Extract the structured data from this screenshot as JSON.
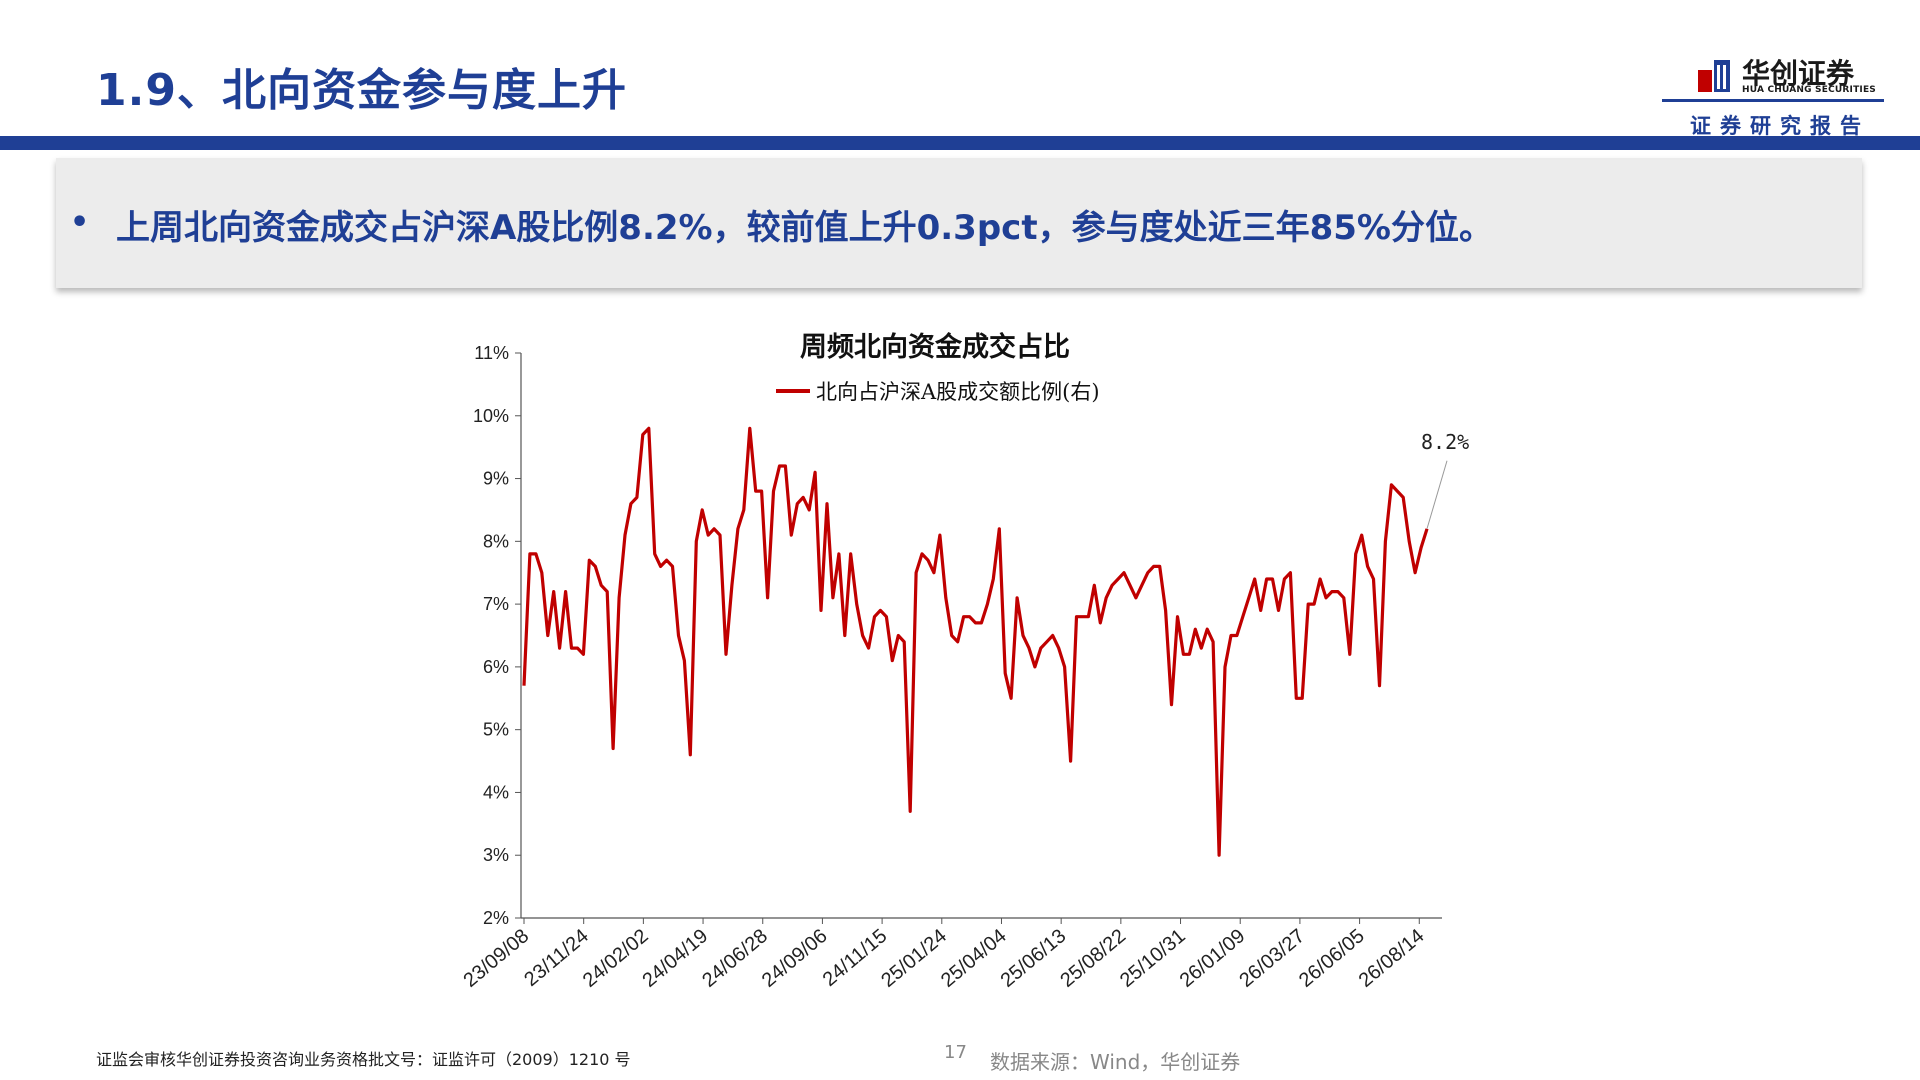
{
  "header": {
    "title": "1.9、北向资金参与度上升",
    "logo_cn": "华创证券",
    "logo_en": "HUA CHUANG SECURITIES",
    "report_label": "证券研究报告",
    "brand_color": "#1f3f95",
    "logo_icon": "huachuang-logo-icon"
  },
  "summary": {
    "bullet": "•",
    "text": "上周北向资金成交占沪深A股比例8.2%，较前值上升0.3pct，参与度处近三年85%分位。"
  },
  "chart_data": {
    "type": "line",
    "title": "周频北向资金成交占比",
    "legend_position": "top",
    "grid": false,
    "x_tick_labels": [
      "23/09/08",
      "23/11/24",
      "24/02/02",
      "24/04/19",
      "24/06/28",
      "24/09/06",
      "24/11/15",
      "25/01/24",
      "25/04/04",
      "25/06/13",
      "25/08/22",
      "25/10/31",
      "26/01/09",
      "26/03/27",
      "26/06/05",
      "26/08/14"
    ],
    "y_ticks": [
      "2%",
      "3%",
      "4%",
      "5%",
      "6%",
      "7%",
      "8%",
      "9%",
      "10%",
      "11%"
    ],
    "ylim": [
      2,
      11
    ],
    "line_color": "#c00000",
    "last_label": "8.2%",
    "series": [
      {
        "name": "北向占沪深A股成交额比例(右)",
        "values": [
          5.7,
          7.8,
          7.8,
          7.5,
          6.5,
          7.2,
          6.3,
          7.2,
          6.3,
          6.3,
          6.2,
          7.7,
          7.6,
          7.3,
          7.2,
          4.7,
          7.1,
          8.1,
          8.6,
          8.7,
          9.7,
          9.8,
          7.8,
          7.6,
          7.7,
          7.6,
          6.5,
          6.1,
          4.6,
          8.0,
          8.5,
          8.1,
          8.2,
          8.1,
          6.2,
          7.3,
          8.2,
          8.5,
          9.8,
          8.8,
          8.8,
          7.1,
          8.8,
          9.2,
          9.2,
          8.1,
          8.6,
          8.7,
          8.5,
          9.1,
          6.9,
          8.6,
          7.1,
          7.8,
          6.5,
          7.8,
          7.0,
          6.5,
          6.3,
          6.8,
          6.9,
          6.8,
          6.1,
          6.5,
          6.4,
          3.7,
          7.5,
          7.8,
          7.7,
          7.5,
          8.1,
          7.1,
          6.5,
          6.4,
          6.8,
          6.8,
          6.7,
          6.7,
          7.0,
          7.4,
          8.2,
          5.9,
          5.5,
          7.1,
          6.5,
          6.3,
          6.0,
          6.3,
          6.4,
          6.5,
          6.3,
          6.0,
          4.5,
          6.8,
          6.8,
          6.8,
          7.3,
          6.7,
          7.1,
          7.3,
          7.4,
          7.5,
          7.3,
          7.1,
          7.3,
          7.5,
          7.6,
          7.6,
          6.9,
          5.4,
          6.8,
          6.2,
          6.2,
          6.6,
          6.3,
          6.6,
          6.4,
          3.0,
          6.0,
          6.5,
          6.5,
          6.8,
          7.1,
          7.4,
          6.9,
          7.4,
          7.4,
          6.9,
          7.4,
          7.5,
          5.5,
          5.5,
          7.0,
          7.0,
          7.4,
          7.1,
          7.2,
          7.2,
          7.1,
          6.2,
          7.8,
          8.1,
          7.6,
          7.4,
          5.7,
          8.0,
          8.9,
          8.8,
          8.7,
          8.0,
          7.5,
          7.9,
          8.2
        ]
      }
    ]
  },
  "footer": {
    "license": "证监会审核华创证券投资咨询业务资格批文号：证监许可（2009）1210 号",
    "page_number": "17",
    "source": "数据来源：Wind，华创证券"
  }
}
